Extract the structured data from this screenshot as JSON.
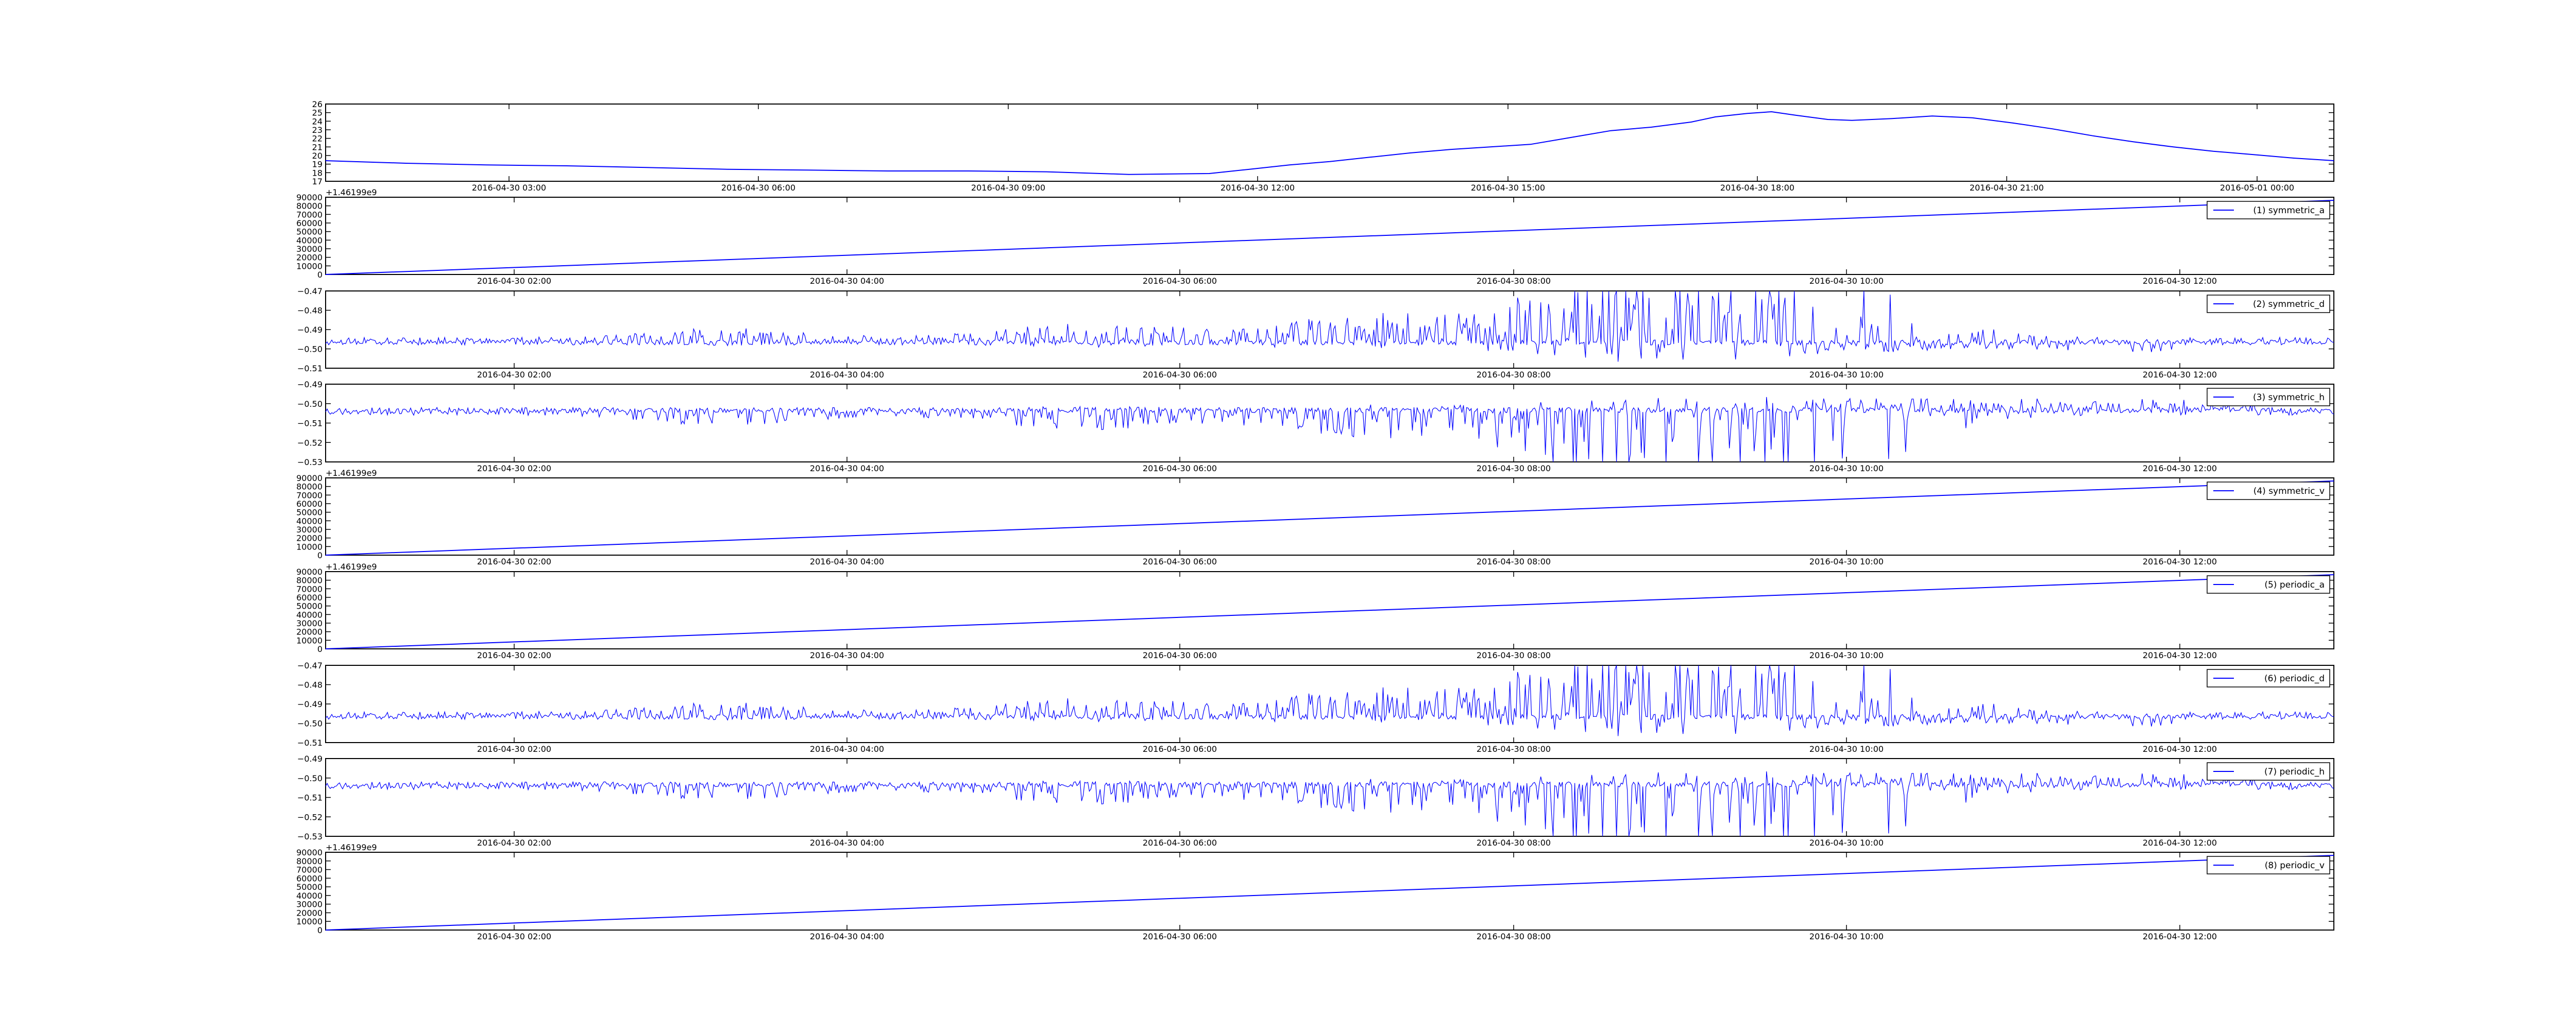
{
  "figure": {
    "colors": {
      "line": "#0000ff",
      "frame": "#000000",
      "background": "#ffffff"
    }
  },
  "chart_data": [
    {
      "id": "top",
      "type": "line",
      "title": "",
      "xlabel": "",
      "ylabel": "",
      "ylim": [
        17,
        26
      ],
      "yticks": [
        "26",
        "25",
        "24",
        "23",
        "22",
        "21",
        "20",
        "19",
        "18",
        "17"
      ],
      "x_tick_labels": [
        "2016-04-30 03:00",
        "2016-04-30 06:00",
        "2016-04-30 09:00",
        "2016-04-30 12:00",
        "2016-04-30 15:00",
        "2016-04-30 18:00",
        "2016-04-30 21:00",
        "2016-05-01 00:00"
      ],
      "legend": null,
      "series": [
        {
          "x_hours": [
            0,
            1,
            2,
            3,
            4,
            5,
            6,
            7,
            8,
            9,
            10,
            11,
            11.5,
            12,
            12.5,
            13,
            13.5,
            14,
            14.5,
            15,
            15.5,
            16,
            16.5,
            17,
            17.3,
            17.7,
            18,
            18.3,
            18.7,
            19,
            19.5,
            20,
            20.5,
            21,
            21.5,
            22,
            22.5,
            23,
            23.5,
            24,
            24.5,
            25
          ],
          "values": [
            19.4,
            19.1,
            18.9,
            18.8,
            18.6,
            18.4,
            18.3,
            18.2,
            18.2,
            18.1,
            17.8,
            17.9,
            18.4,
            18.9,
            19.3,
            19.8,
            20.3,
            20.7,
            21.0,
            21.3,
            22.1,
            22.9,
            23.3,
            23.9,
            24.5,
            24.9,
            25.1,
            24.7,
            24.2,
            24.1,
            24.3,
            24.6,
            24.4,
            23.8,
            23.1,
            22.3,
            21.6,
            21.0,
            20.5,
            20.1,
            19.7,
            19.4
          ]
        }
      ]
    },
    {
      "id": "p1",
      "type": "line",
      "offset_label": "+1.46199e9",
      "ylim": [
        0,
        90000
      ],
      "yticks": [
        "90000",
        "80000",
        "70000",
        "60000",
        "50000",
        "40000",
        "30000",
        "20000",
        "10000",
        "0"
      ],
      "x_tick_labels": [
        "2016-04-30 02:00",
        "2016-04-30 04:00",
        "2016-04-30 06:00",
        "2016-04-30 08:00",
        "2016-04-30 10:00",
        "2016-04-30 12:00"
      ],
      "legend": "(1) symmetric_a",
      "series": [
        {
          "name": "(1) symmetric_a",
          "x_hours": [
            0,
            24
          ],
          "values": [
            0,
            86400
          ]
        }
      ]
    },
    {
      "id": "p2",
      "type": "line",
      "ylim": [
        -0.515,
        -0.47
      ],
      "yticks": [
        "−0.47",
        "−0.48",
        "−0.49",
        "−0.50",
        "−0.51"
      ],
      "x_tick_labels": [
        "2016-04-30 02:00",
        "2016-04-30 04:00",
        "2016-04-30 06:00",
        "2016-04-30 08:00",
        "2016-04-30 10:00",
        "2016-04-30 12:00"
      ],
      "legend": "(2) symmetric_d",
      "series": [
        {
          "name": "(2) symmetric_d",
          "baseline": -0.5,
          "noise": "positive",
          "seed": 7
        }
      ]
    },
    {
      "id": "p3",
      "type": "line",
      "ylim": [
        -0.53,
        -0.485
      ],
      "yticks": [
        "−0.49",
        "−0.50",
        "−0.51",
        "−0.52",
        "−0.53"
      ],
      "x_tick_labels": [
        "2016-04-30 02:00",
        "2016-04-30 04:00",
        "2016-04-30 06:00",
        "2016-04-30 08:00",
        "2016-04-30 10:00",
        "2016-04-30 12:00"
      ],
      "legend": "(3) symmetric_h",
      "series": [
        {
          "name": "(3) symmetric_h",
          "baseline": -0.5,
          "noise": "negative",
          "seed": 11
        }
      ]
    },
    {
      "id": "p4",
      "type": "line",
      "offset_label": "+1.46199e9",
      "ylim": [
        0,
        90000
      ],
      "yticks": [
        "90000",
        "80000",
        "70000",
        "60000",
        "50000",
        "40000",
        "30000",
        "20000",
        "10000",
        "0"
      ],
      "x_tick_labels": [
        "2016-04-30 02:00",
        "2016-04-30 04:00",
        "2016-04-30 06:00",
        "2016-04-30 08:00",
        "2016-04-30 10:00",
        "2016-04-30 12:00"
      ],
      "legend": "(4) symmetric_v",
      "series": [
        {
          "name": "(4) symmetric_v",
          "x_hours": [
            0,
            24
          ],
          "values": [
            0,
            86400
          ]
        }
      ]
    },
    {
      "id": "p5",
      "type": "line",
      "offset_label": "+1.46199e9",
      "ylim": [
        0,
        90000
      ],
      "yticks": [
        "90000",
        "80000",
        "70000",
        "60000",
        "50000",
        "40000",
        "30000",
        "20000",
        "10000",
        "0"
      ],
      "x_tick_labels": [
        "2016-04-30 02:00",
        "2016-04-30 04:00",
        "2016-04-30 06:00",
        "2016-04-30 08:00",
        "2016-04-30 10:00",
        "2016-04-30 12:00"
      ],
      "legend": "(5) periodic_a",
      "series": [
        {
          "name": "(5) periodic_a",
          "x_hours": [
            0,
            24
          ],
          "values": [
            0,
            86400
          ]
        }
      ]
    },
    {
      "id": "p6",
      "type": "line",
      "ylim": [
        -0.515,
        -0.47
      ],
      "yticks": [
        "−0.47",
        "−0.48",
        "−0.49",
        "−0.50",
        "−0.51"
      ],
      "x_tick_labels": [
        "2016-04-30 02:00",
        "2016-04-30 04:00",
        "2016-04-30 06:00",
        "2016-04-30 08:00",
        "2016-04-30 10:00",
        "2016-04-30 12:00"
      ],
      "legend": "(6) periodic_d",
      "series": [
        {
          "name": "(6) periodic_d",
          "baseline": -0.5,
          "noise": "positive",
          "seed": 7
        }
      ]
    },
    {
      "id": "p7",
      "type": "line",
      "ylim": [
        -0.53,
        -0.485
      ],
      "yticks": [
        "−0.49",
        "−0.50",
        "−0.51",
        "−0.52",
        "−0.53"
      ],
      "x_tick_labels": [
        "2016-04-30 02:00",
        "2016-04-30 04:00",
        "2016-04-30 06:00",
        "2016-04-30 08:00",
        "2016-04-30 10:00",
        "2016-04-30 12:00"
      ],
      "legend": "(7) periodic_h",
      "series": [
        {
          "name": "(7) periodic_h",
          "baseline": -0.5,
          "noise": "negative",
          "seed": 11
        }
      ]
    },
    {
      "id": "p8",
      "type": "line",
      "offset_label": "+1.46199e9",
      "ylim": [
        0,
        90000
      ],
      "yticks": [
        "90000",
        "80000",
        "70000",
        "60000",
        "50000",
        "40000",
        "30000",
        "20000",
        "10000",
        "0"
      ],
      "x_tick_labels": [
        "2016-04-30 02:00",
        "2016-04-30 04:00",
        "2016-04-30 06:00",
        "2016-04-30 08:00",
        "2016-04-30 10:00",
        "2016-04-30 12:00"
      ],
      "legend": "(8) periodic_v",
      "series": [
        {
          "name": "(8) periodic_v",
          "x_hours": [
            0,
            24
          ],
          "values": [
            0,
            86400
          ]
        }
      ]
    }
  ]
}
